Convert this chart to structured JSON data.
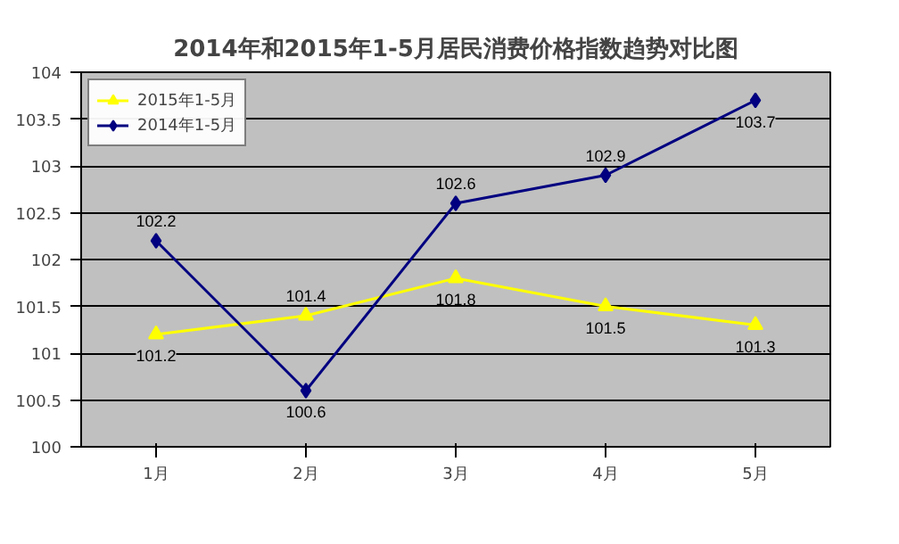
{
  "chart_data": {
    "type": "line",
    "title": "2014年和2015年1-5月居民消费价格指数趋势对比图",
    "categories": [
      "1月",
      "2月",
      "3月",
      "4月",
      "5月"
    ],
    "series": [
      {
        "name": "2015年1-5月",
        "color": "#ffff00",
        "marker": "triangle",
        "values": [
          101.2,
          101.4,
          101.8,
          101.5,
          101.3
        ]
      },
      {
        "name": "2014年1-5月",
        "color": "#000080",
        "marker": "diamond",
        "values": [
          102.2,
          100.6,
          102.6,
          102.9,
          103.7
        ]
      }
    ],
    "ylim": [
      100,
      104
    ],
    "yticks": [
      100,
      100.5,
      101,
      101.5,
      102,
      102.5,
      103,
      103.5,
      104
    ],
    "grid": "y",
    "legend": "top left",
    "data_labels": true,
    "line_style": "solid"
  }
}
